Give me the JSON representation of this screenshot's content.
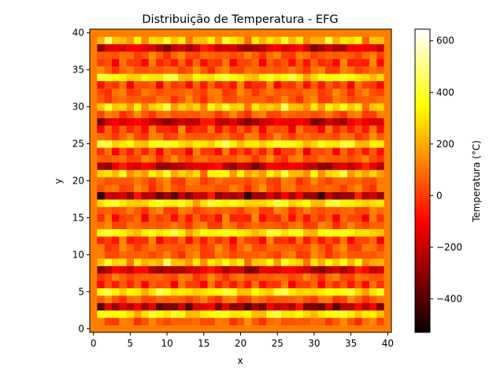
{
  "chart_data": {
    "type": "heatmap",
    "title": "Distribuição de Temperatura - EFG",
    "xlabel": "x",
    "ylabel": "y",
    "xlim": [
      -0.5,
      40.5
    ],
    "ylim": [
      -0.5,
      40.5
    ],
    "x_ticks": [
      0,
      5,
      10,
      15,
      20,
      25,
      30,
      35,
      40
    ],
    "y_ticks": [
      0,
      5,
      10,
      15,
      20,
      25,
      30,
      35,
      40
    ],
    "grid_size": 41,
    "colormap": "hot",
    "colorbar": {
      "label": "Temperatura (°C)",
      "range": [
        -530,
        645
      ],
      "ticks": [
        -400,
        -200,
        0,
        200,
        400,
        600
      ]
    },
    "grid": false,
    "pattern_description_values": {
      "border_value_approx": 120,
      "hot_stripe_rows_y": [
        2,
        5,
        9,
        13,
        17,
        21,
        25,
        30,
        34,
        39
      ],
      "cold_stripe_rows_y": [
        3,
        8,
        18,
        22,
        28,
        38
      ]
    }
  }
}
